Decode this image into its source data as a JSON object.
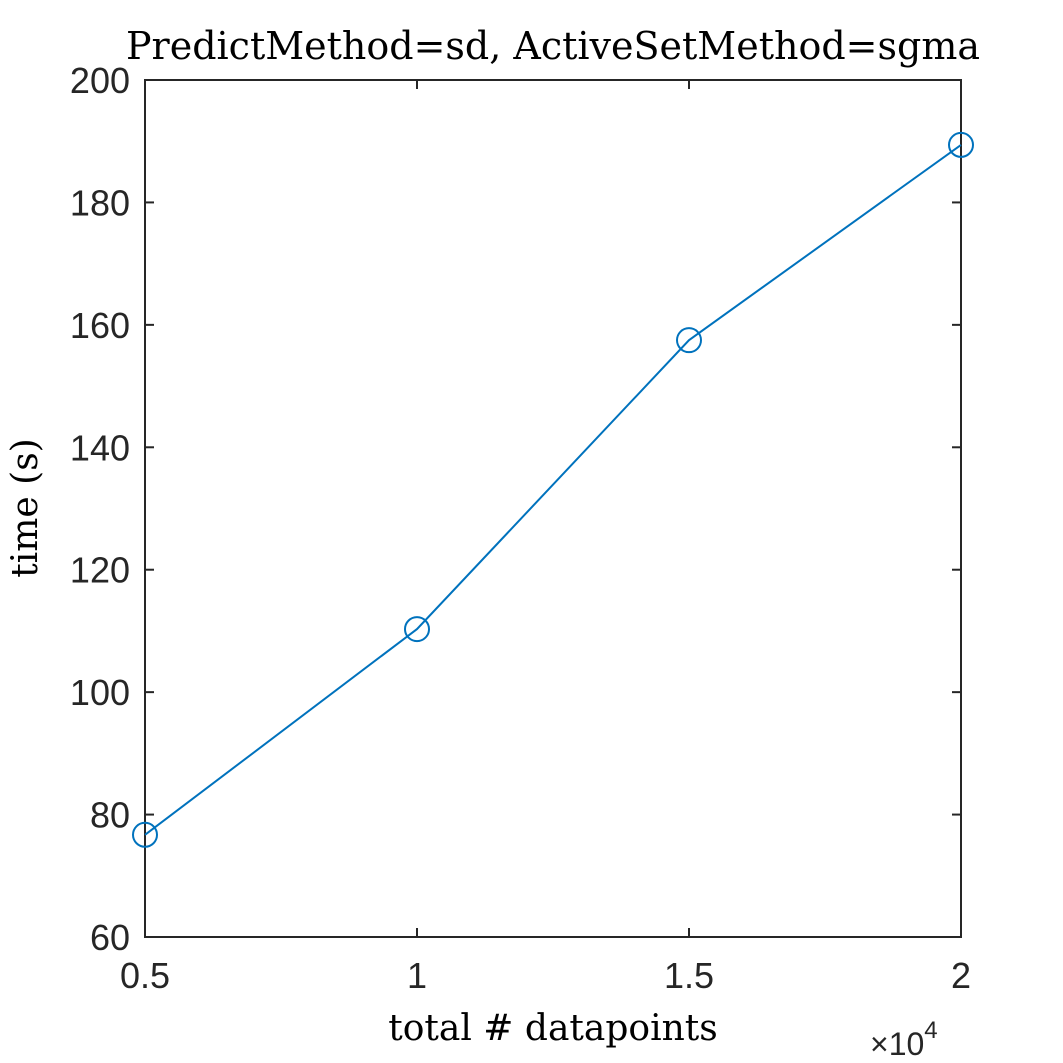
{
  "chart_data": {
    "type": "line",
    "title": "PredictMethod=sd, ActiveSetMethod=sgma",
    "xlabel": "total # datapoints",
    "ylabel": "time (s)",
    "x_tick_labels": [
      "0.5",
      "1",
      "1.5",
      "2"
    ],
    "y_tick_labels": [
      "60",
      "80",
      "100",
      "120",
      "140",
      "160",
      "180",
      "200"
    ],
    "x_exponent_label": "×10",
    "x_exponent_power": "4",
    "xlim": [
      5000,
      20000
    ],
    "ylim": [
      60,
      200
    ],
    "x_ticks": [
      5000,
      10000,
      15000,
      20000
    ],
    "y_ticks": [
      60,
      80,
      100,
      120,
      140,
      160,
      180,
      200
    ],
    "grid": false,
    "marker": "circle",
    "series": [
      {
        "x": [
          5000,
          10000,
          15000,
          20000
        ],
        "values": [
          76.7,
          110.3,
          157.5,
          189.4
        ],
        "color": "#0072BD"
      }
    ]
  },
  "colors": {
    "axis": "#262626",
    "series": "#0072BD",
    "background": "#ffffff"
  }
}
